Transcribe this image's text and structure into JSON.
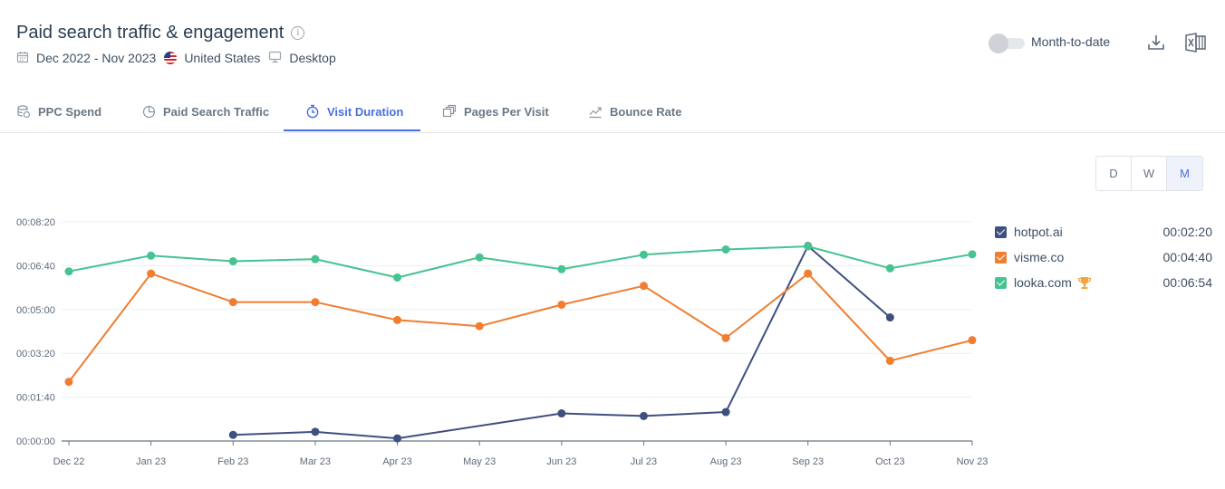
{
  "header": {
    "title": "Paid search traffic & engagement",
    "date_range": "Dec 2022 - Nov 2023",
    "country": "United States",
    "device": "Desktop"
  },
  "toolbar": {
    "toggle_label": "Month-to-date",
    "toggle_on": false
  },
  "tabs": [
    {
      "label": "PPC Spend",
      "icon": "coins-icon",
      "active": false
    },
    {
      "label": "Paid Search Traffic",
      "icon": "pie-chart-icon",
      "active": false
    },
    {
      "label": "Visit Duration",
      "icon": "stopwatch-icon",
      "active": true
    },
    {
      "label": "Pages Per Visit",
      "icon": "pages-icon",
      "active": false
    },
    {
      "label": "Bounce Rate",
      "icon": "trend-icon",
      "active": false
    }
  ],
  "granularity": {
    "options": [
      "D",
      "W",
      "M"
    ],
    "selected": "M"
  },
  "legend": [
    {
      "name": "hotpot.ai",
      "value": "00:02:20",
      "color": "#3f4f80"
    },
    {
      "name": "visme.co",
      "value": "00:04:40",
      "color": "#f07d30"
    },
    {
      "name": "looka.com",
      "value": "00:06:54",
      "color": "#45c390",
      "trophy": true
    }
  ],
  "chart_data": {
    "type": "line",
    "categories": [
      "Dec 22",
      "Jan 23",
      "Feb 23",
      "Mar 23",
      "Apr 23",
      "May 23",
      "Jun 23",
      "Jul 23",
      "Aug 23",
      "Sep 23",
      "Oct 23",
      "Nov 23"
    ],
    "y_tick_labels": [
      "00:00:00",
      "00:01:40",
      "00:03:20",
      "00:05:00",
      "00:06:40",
      "00:08:20"
    ],
    "y_tick_seconds": [
      0,
      100,
      200,
      300,
      400,
      500
    ],
    "ylim_seconds": [
      0,
      500
    ],
    "y_unit": "seconds",
    "grid": true,
    "legend_position": "right",
    "series": [
      {
        "name": "hotpot.ai",
        "color": "#3f4f80",
        "values": [
          null,
          null,
          14,
          21,
          6,
          null,
          63,
          57,
          66,
          445,
          282,
          null
        ],
        "markers": [
          false,
          false,
          true,
          true,
          true,
          false,
          true,
          true,
          true,
          true,
          true,
          false
        ]
      },
      {
        "name": "visme.co",
        "color": "#f07d30",
        "values": [
          135,
          382,
          317,
          317,
          276,
          262,
          311,
          354,
          235,
          382,
          183,
          230
        ],
        "markers": [
          true,
          true,
          true,
          true,
          true,
          true,
          true,
          true,
          true,
          true,
          true,
          true
        ]
      },
      {
        "name": "looka.com",
        "color": "#45c390",
        "values": [
          387,
          423,
          410,
          415,
          373,
          419,
          392,
          425,
          437,
          444,
          394,
          426
        ],
        "markers": [
          true,
          true,
          true,
          true,
          true,
          true,
          true,
          true,
          true,
          true,
          true,
          true
        ]
      }
    ]
  }
}
